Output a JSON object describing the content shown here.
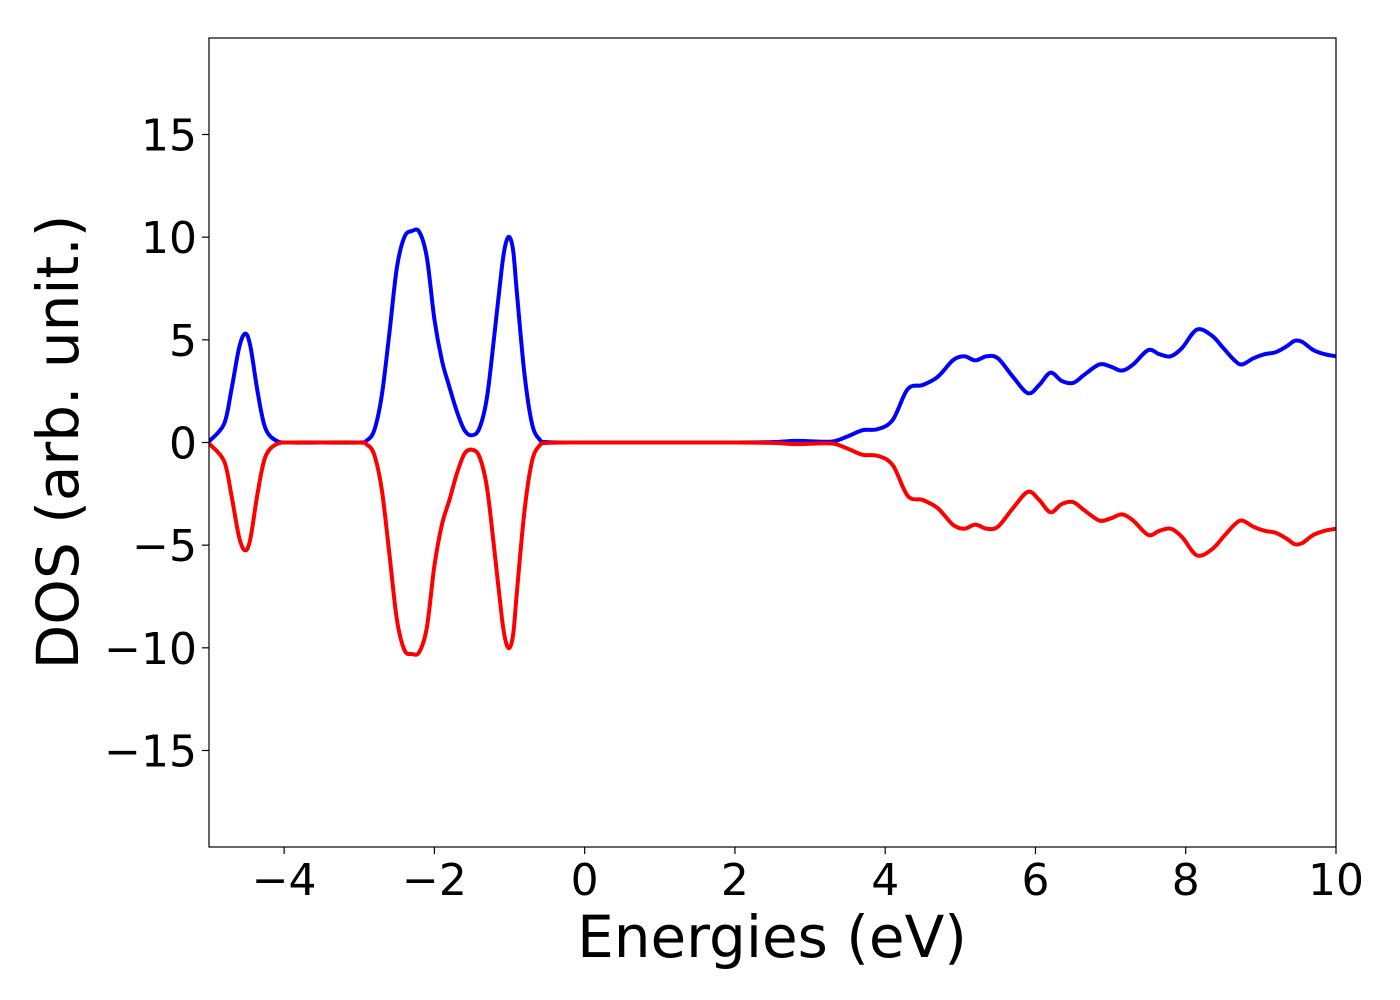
{
  "chart_data": {
    "type": "line",
    "title": "",
    "xlabel": "Energies (eV)",
    "ylabel": "DOS (arb. unit.)",
    "xlim": [
      -5,
      10
    ],
    "ylim": [
      -19.7,
      19.7
    ],
    "grid": false,
    "legend": "none",
    "x_ticks": [
      -4,
      -2,
      0,
      2,
      4,
      6,
      8,
      10
    ],
    "x_tick_labels": [
      "−4",
      "−2",
      "0",
      "2",
      "4",
      "6",
      "8",
      "10"
    ],
    "y_ticks": [
      -15,
      -10,
      -5,
      0,
      5,
      10,
      15
    ],
    "y_tick_labels": [
      "−15",
      "−10",
      "−5",
      "0",
      "5",
      "10",
      "15"
    ],
    "series": [
      {
        "color": "#0000ff",
        "x": [
          -5.0,
          -4.8,
          -4.7,
          -4.6,
          -4.52,
          -4.45,
          -4.35,
          -4.25,
          -4.1,
          -3.9,
          -3.5,
          -3.0,
          -2.9,
          -2.8,
          -2.7,
          -2.6,
          -2.5,
          -2.4,
          -2.3,
          -2.2,
          -2.1,
          -2.0,
          -1.9,
          -1.8,
          -1.7,
          -1.6,
          -1.5,
          -1.4,
          -1.3,
          -1.2,
          -1.1,
          -1.05,
          -1.0,
          -0.95,
          -0.9,
          -0.8,
          -0.7,
          -0.6,
          -0.5,
          0.0,
          1.0,
          2.0,
          2.5,
          2.8,
          3.0,
          3.3,
          3.5,
          3.7,
          3.9,
          4.1,
          4.3,
          4.5,
          4.7,
          4.9,
          5.05,
          5.2,
          5.35,
          5.5,
          5.7,
          5.9,
          6.05,
          6.2,
          6.35,
          6.5,
          6.65,
          6.85,
          7.0,
          7.15,
          7.3,
          7.5,
          7.65,
          7.8,
          7.95,
          8.15,
          8.35,
          8.5,
          8.65,
          8.75,
          8.9,
          9.05,
          9.2,
          9.35,
          9.45,
          9.55,
          9.7,
          9.85,
          10.0
        ],
        "y": [
          0.05,
          0.9,
          2.6,
          4.6,
          5.3,
          4.7,
          2.4,
          0.7,
          0.08,
          0.0,
          0.0,
          0.0,
          0.1,
          0.6,
          2.3,
          5.3,
          8.5,
          10.0,
          10.3,
          10.25,
          9.0,
          6.0,
          4.0,
          2.7,
          1.5,
          0.6,
          0.35,
          0.7,
          2.2,
          5.3,
          8.6,
          9.7,
          10.0,
          9.3,
          7.2,
          3.3,
          0.9,
          0.15,
          0.02,
          0.0,
          0.0,
          0.0,
          0.02,
          0.08,
          0.06,
          0.05,
          0.3,
          0.6,
          0.65,
          1.1,
          2.6,
          2.8,
          3.2,
          4.0,
          4.2,
          4.0,
          4.2,
          4.1,
          3.2,
          2.4,
          2.8,
          3.4,
          3.0,
          2.9,
          3.3,
          3.8,
          3.7,
          3.5,
          3.8,
          4.5,
          4.3,
          4.2,
          4.6,
          5.5,
          5.2,
          4.6,
          4.0,
          3.8,
          4.1,
          4.3,
          4.4,
          4.7,
          4.95,
          4.9,
          4.5,
          4.3,
          4.2
        ]
      },
      {
        "color": "#ff0000",
        "x": [
          -5.0,
          -4.8,
          -4.7,
          -4.6,
          -4.52,
          -4.45,
          -4.35,
          -4.25,
          -4.1,
          -3.9,
          -3.5,
          -3.0,
          -2.9,
          -2.8,
          -2.7,
          -2.6,
          -2.5,
          -2.4,
          -2.3,
          -2.2,
          -2.1,
          -2.0,
          -1.9,
          -1.8,
          -1.7,
          -1.6,
          -1.5,
          -1.4,
          -1.3,
          -1.2,
          -1.1,
          -1.05,
          -1.0,
          -0.95,
          -0.9,
          -0.8,
          -0.7,
          -0.6,
          -0.5,
          0.0,
          1.0,
          2.0,
          2.5,
          2.8,
          3.0,
          3.3,
          3.5,
          3.7,
          3.9,
          4.1,
          4.3,
          4.5,
          4.7,
          4.9,
          5.05,
          5.2,
          5.35,
          5.5,
          5.7,
          5.9,
          6.05,
          6.2,
          6.35,
          6.5,
          6.65,
          6.85,
          7.0,
          7.15,
          7.3,
          7.5,
          7.65,
          7.8,
          7.95,
          8.15,
          8.35,
          8.5,
          8.65,
          8.75,
          8.9,
          9.05,
          9.2,
          9.35,
          9.45,
          9.55,
          9.7,
          9.85,
          10.0
        ],
        "y": [
          -0.05,
          -0.9,
          -2.6,
          -4.6,
          -5.25,
          -4.7,
          -2.4,
          -0.7,
          -0.08,
          0.0,
          0.0,
          0.0,
          -0.1,
          -0.6,
          -2.3,
          -5.4,
          -8.6,
          -10.1,
          -10.3,
          -10.2,
          -9.0,
          -6.0,
          -4.0,
          -2.8,
          -1.5,
          -0.55,
          -0.35,
          -0.7,
          -2.2,
          -5.3,
          -8.6,
          -9.7,
          -10.0,
          -9.3,
          -7.2,
          -3.3,
          -0.9,
          -0.15,
          -0.02,
          0.0,
          0.0,
          0.0,
          -0.02,
          -0.08,
          -0.06,
          -0.05,
          -0.3,
          -0.6,
          -0.65,
          -1.1,
          -2.6,
          -2.8,
          -3.2,
          -4.0,
          -4.2,
          -4.0,
          -4.2,
          -4.1,
          -3.2,
          -2.4,
          -2.8,
          -3.4,
          -3.0,
          -2.9,
          -3.3,
          -3.8,
          -3.7,
          -3.5,
          -3.8,
          -4.5,
          -4.3,
          -4.2,
          -4.6,
          -5.5,
          -5.2,
          -4.6,
          -4.0,
          -3.8,
          -4.1,
          -4.3,
          -4.4,
          -4.7,
          -4.95,
          -4.9,
          -4.5,
          -4.3,
          -4.2
        ]
      }
    ]
  }
}
